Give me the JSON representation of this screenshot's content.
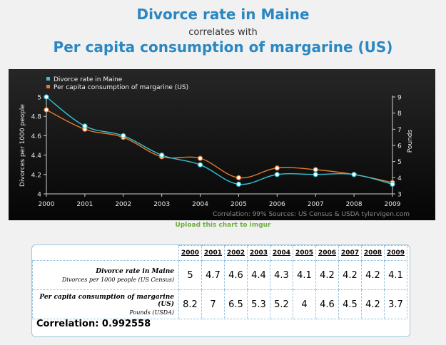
{
  "header": {
    "title1": "Divorce rate in Maine",
    "subtitle": "correlates with",
    "title2": "Per capita consumption of margarine (US)"
  },
  "chart_data": {
    "type": "line",
    "x": [
      "2000",
      "2001",
      "2002",
      "2003",
      "2004",
      "2005",
      "2006",
      "2007",
      "2008",
      "2009"
    ],
    "series": [
      {
        "name": "Divorce rate in Maine",
        "axis": "left",
        "color": "#34c3d6",
        "values": [
          5,
          4.7,
          4.6,
          4.4,
          4.3,
          4.1,
          4.2,
          4.2,
          4.2,
          4.1
        ]
      },
      {
        "name": "Per capita consumption of margarine (US)",
        "axis": "right",
        "color": "#e07a2c",
        "values": [
          8.2,
          7,
          6.5,
          5.3,
          5.2,
          4,
          4.6,
          4.5,
          4.2,
          3.7
        ]
      }
    ],
    "ylabel_left": "Divorces per 1000 people",
    "ylabel_right": "Pounds",
    "ylim_left": [
      4,
      5
    ],
    "ylim_right": [
      3,
      9
    ],
    "yticks_left": [
      "4",
      "4.2",
      "4.4",
      "4.6",
      "4.8",
      "5"
    ],
    "yticks_right": [
      "3",
      "4",
      "5",
      "6",
      "7",
      "8",
      "9"
    ],
    "legend_position": "top-left",
    "footer": "Correlation: 99%     Sources: US Census & USDA   tylervigen.com",
    "grid": false
  },
  "upload_label": "Upload this chart to imgur",
  "table": {
    "years": [
      "2000",
      "2001",
      "2002",
      "2003",
      "2004",
      "2005",
      "2006",
      "2007",
      "2008",
      "2009"
    ],
    "rows": [
      {
        "name": "Divorce rate in Maine",
        "unit": "Divorces per 1000 people (US Census)",
        "values": [
          "5",
          "4.7",
          "4.6",
          "4.4",
          "4.3",
          "4.1",
          "4.2",
          "4.2",
          "4.2",
          "4.1"
        ]
      },
      {
        "name": "Per capita consumption of margarine (US)",
        "unit": "Pounds (USDA)",
        "values": [
          "8.2",
          "7",
          "6.5",
          "5.3",
          "5.2",
          "4",
          "4.6",
          "4.5",
          "4.2",
          "3.7"
        ]
      }
    ],
    "correlation_label": "Correlation: 0.992558"
  }
}
